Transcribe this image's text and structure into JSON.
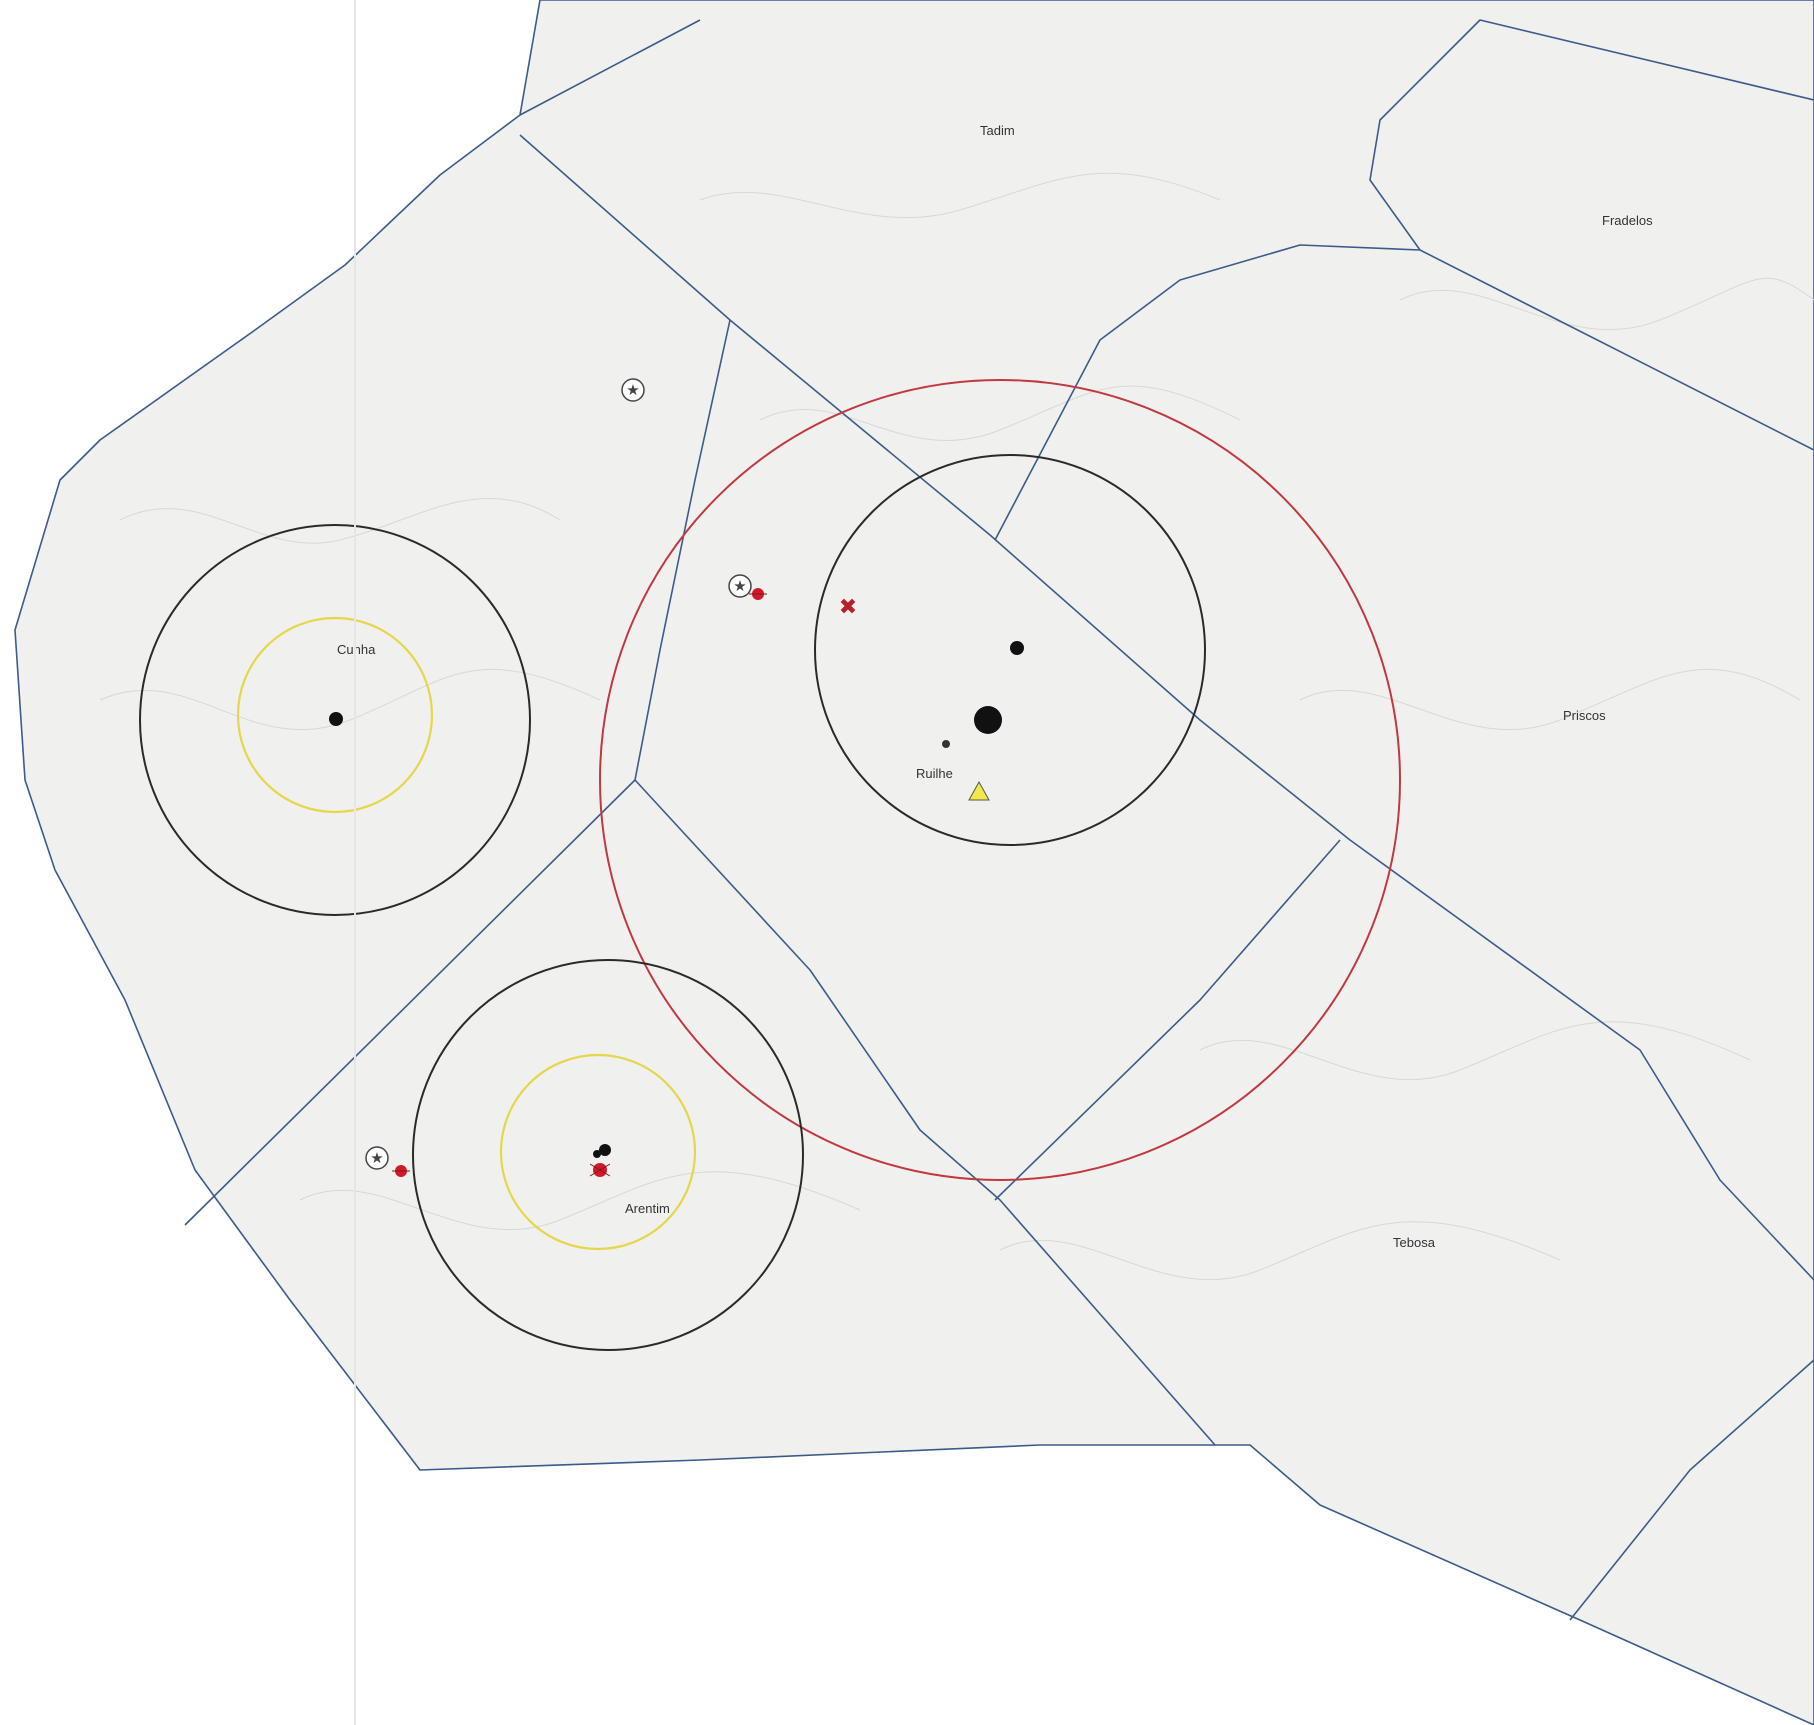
{
  "map": {
    "colors": {
      "boundary": "#3b5b8a",
      "ring_black": "#2a2a2a",
      "ring_red": "#c0393f",
      "ring_yellow": "#e4d74a",
      "marker_red": "#d1192a",
      "marker_black": "#111111",
      "triangle_fill": "#f3e84a"
    },
    "place_labels": {
      "tadim": "Tadim",
      "fradelos": "Fradelos",
      "cunha": "Cunha",
      "ruilhe": "Ruilhe",
      "priscos": "Priscos",
      "arentim": "Arentim",
      "tebosa": "Tebosa"
    },
    "icons": [
      "star-in-circle-icon",
      "red-dot-marker-icon",
      "black-dot-marker-icon",
      "cross-marker-icon",
      "yellow-triangle-icon"
    ]
  }
}
